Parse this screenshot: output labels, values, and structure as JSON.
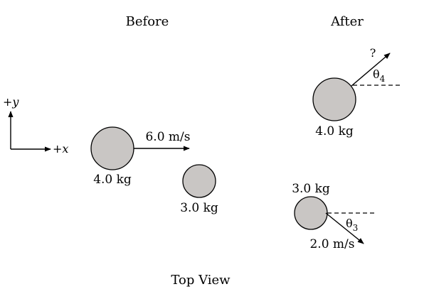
{
  "labels": {
    "before": "Before",
    "after": "After",
    "view": "Top View"
  },
  "axes": {
    "y": "+y",
    "x": "+x"
  },
  "before": {
    "ball_large": {
      "mass": "4.0 kg",
      "velocity": "6.0 m/s"
    },
    "ball_small": {
      "mass": "3.0 kg"
    }
  },
  "after": {
    "ball_large": {
      "mass": "4.0 kg",
      "velocity": "?",
      "angle_symbol": "θ",
      "angle_sub": "4"
    },
    "ball_small": {
      "mass": "3.0 kg",
      "velocity": "2.0 m/s",
      "angle_symbol": "θ",
      "angle_sub": "3"
    }
  },
  "colors": {
    "ball_fill": "#c9c6c4",
    "line": "#000000"
  }
}
